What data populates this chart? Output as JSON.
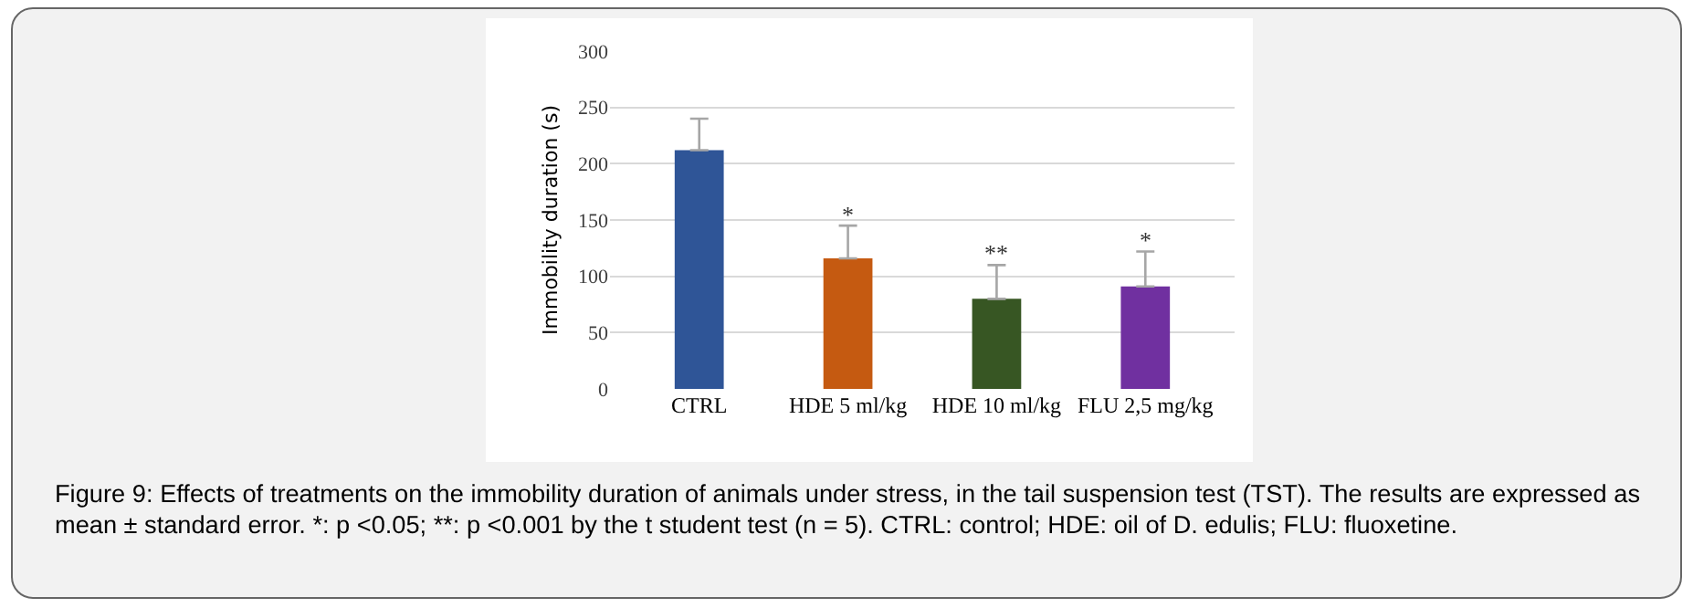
{
  "chart_data": {
    "type": "bar",
    "ylabel": "Immobility duration (s)",
    "categories": [
      "CTRL",
      "HDE 5 ml/kg",
      "HDE 10 ml/kg",
      "FLU 2,5 mg/kg"
    ],
    "values": [
      212,
      116,
      80,
      91
    ],
    "colors": [
      "#2f5597",
      "#c55a11",
      "#375623",
      "#7030a0"
    ],
    "errors": [
      [
        212,
        240
      ],
      [
        116,
        145
      ],
      [
        80,
        110
      ],
      [
        91,
        122
      ]
    ],
    "ylim": [
      0,
      300
    ],
    "yticks": [
      0,
      50,
      100,
      150,
      200,
      250,
      300
    ],
    "grid": "y",
    "annotations": [
      {
        "text": "*",
        "x": "HDE 5 ml/kg",
        "y": 145
      },
      {
        "text": "**",
        "x": "HDE 10 ml/kg",
        "y": 110
      },
      {
        "text": "*",
        "x": "FLU 2,5 mg/kg",
        "y": 122
      },
      "Figure 9: Effects of treatments on the immobility duration of animals under stress, in the tail suspension test (TST). The results are expressed as mean ± standard error. *: p <0.05; **: p <0.001 by the t student test (n = 5). CTRL: control; HDE: oil of D. edulis; FLU: fluoxetine."
    ]
  }
}
